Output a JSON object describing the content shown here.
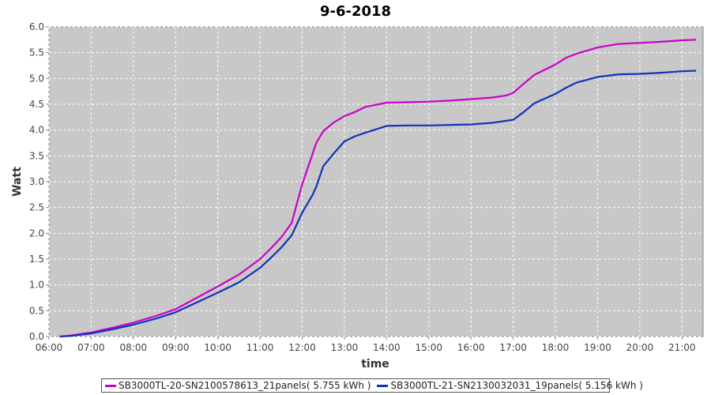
{
  "chart_data": {
    "type": "line",
    "title": "9-6-2018",
    "xlabel": "time",
    "ylabel": "Watt",
    "xlim": [
      "06:00",
      "21:30"
    ],
    "ylim": [
      0,
      6.0
    ],
    "x_ticks": [
      "06:00",
      "07:00",
      "08:00",
      "09:00",
      "10:00",
      "11:00",
      "12:00",
      "13:00",
      "14:00",
      "15:00",
      "16:00",
      "17:00",
      "18:00",
      "19:00",
      "20:00",
      "21:00"
    ],
    "y_ticks": [
      "0.0",
      "0.5",
      "1.0",
      "1.5",
      "2.0",
      "2.5",
      "3.0",
      "3.5",
      "4.0",
      "4.5",
      "5.0",
      "5.5",
      "6.0"
    ],
    "grid": true,
    "legend_position": "bottom",
    "series": [
      {
        "name": "SB3000TL-20-SN2100578613_21panels( 5.755 kWh )",
        "color": "#cc00cc",
        "x": [
          "06:15",
          "06:30",
          "07:00",
          "07:30",
          "08:00",
          "08:30",
          "09:00",
          "09:30",
          "10:00",
          "10:30",
          "11:00",
          "11:15",
          "11:30",
          "11:45",
          "11:50",
          "12:00",
          "12:15",
          "12:20",
          "12:30",
          "12:45",
          "13:00",
          "13:15",
          "13:30",
          "14:00",
          "14:30",
          "15:00",
          "15:30",
          "16:00",
          "16:30",
          "16:50",
          "17:00",
          "17:15",
          "17:30",
          "18:00",
          "18:15",
          "18:30",
          "19:00",
          "19:30",
          "20:00",
          "20:30",
          "21:00",
          "21:20"
        ],
        "values": [
          0.0,
          0.02,
          0.08,
          0.17,
          0.27,
          0.39,
          0.53,
          0.75,
          0.97,
          1.2,
          1.5,
          1.7,
          1.92,
          2.2,
          2.45,
          2.95,
          3.55,
          3.75,
          3.98,
          4.15,
          4.27,
          4.35,
          4.45,
          4.53,
          4.54,
          4.55,
          4.57,
          4.6,
          4.63,
          4.67,
          4.72,
          4.9,
          5.07,
          5.27,
          5.4,
          5.48,
          5.6,
          5.67,
          5.69,
          5.71,
          5.74,
          5.75
        ]
      },
      {
        "name": "SB3000TL-21-SN2130032031_19panels( 5.156 kWh )",
        "color": "#1133bb",
        "x": [
          "06:15",
          "06:30",
          "07:00",
          "07:30",
          "08:00",
          "08:30",
          "09:00",
          "09:30",
          "10:00",
          "10:30",
          "11:00",
          "11:15",
          "11:30",
          "11:45",
          "12:00",
          "12:15",
          "12:20",
          "12:30",
          "12:45",
          "13:00",
          "13:15",
          "13:30",
          "14:00",
          "14:30",
          "15:00",
          "15:30",
          "16:00",
          "16:30",
          "17:00",
          "17:15",
          "17:30",
          "18:00",
          "18:15",
          "18:30",
          "19:00",
          "19:30",
          "20:00",
          "20:30",
          "21:00",
          "21:20"
        ],
        "values": [
          0.0,
          0.01,
          0.06,
          0.14,
          0.23,
          0.34,
          0.47,
          0.66,
          0.85,
          1.05,
          1.33,
          1.52,
          1.72,
          1.96,
          2.4,
          2.75,
          2.9,
          3.3,
          3.55,
          3.78,
          3.88,
          3.95,
          4.08,
          4.09,
          4.09,
          4.1,
          4.11,
          4.14,
          4.2,
          4.35,
          4.52,
          4.7,
          4.82,
          4.92,
          5.03,
          5.08,
          5.09,
          5.11,
          5.14,
          5.15
        ]
      }
    ]
  }
}
